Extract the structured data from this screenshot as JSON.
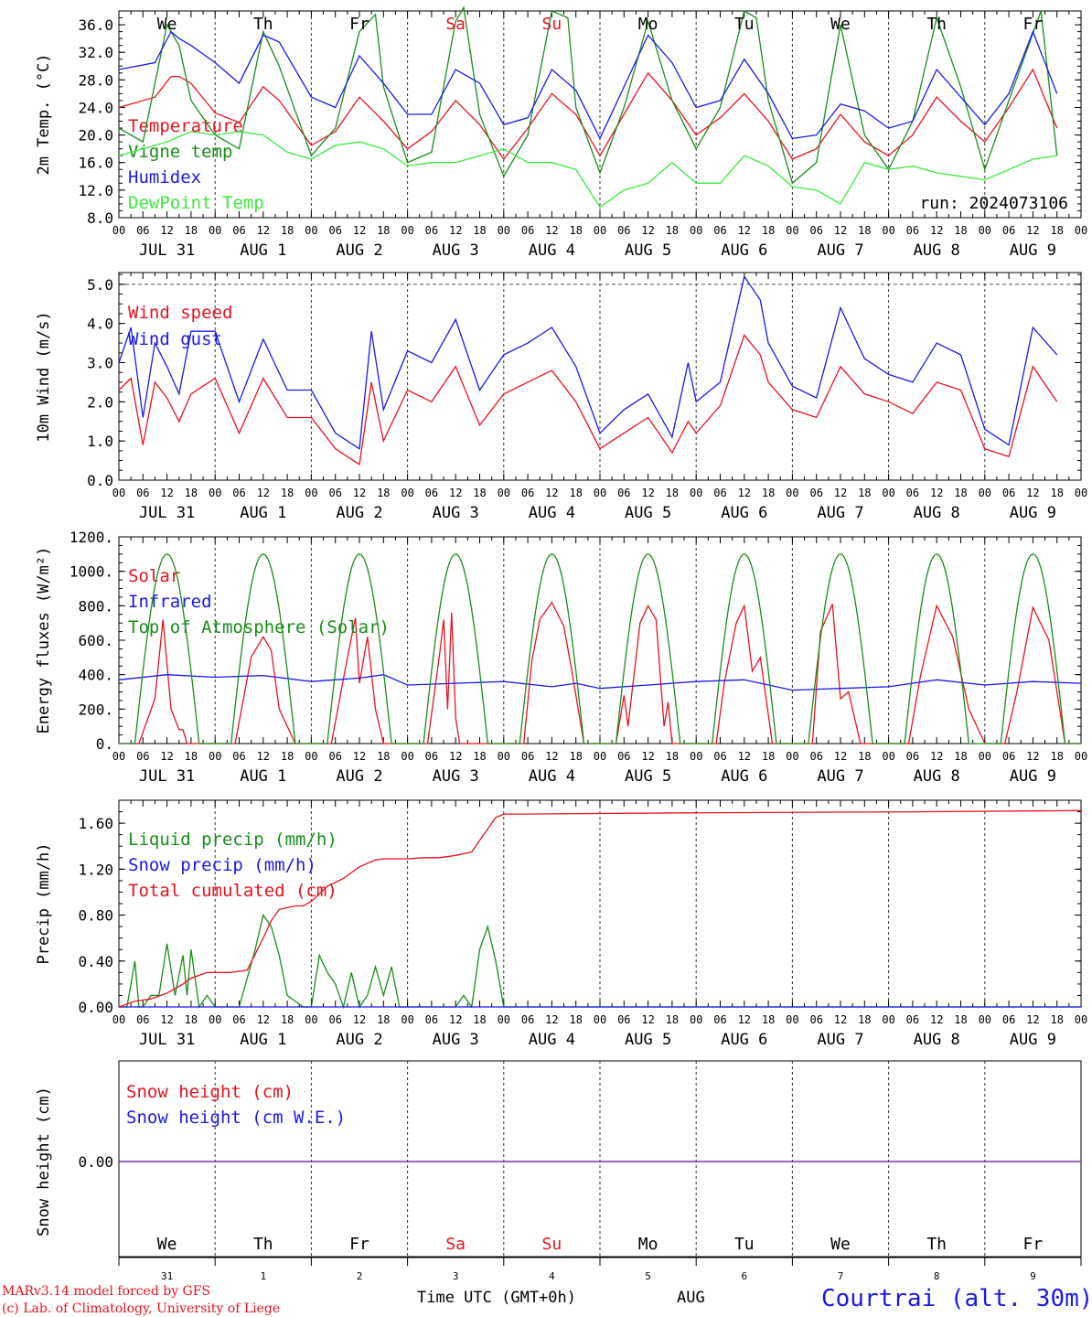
{
  "colors": {
    "red": "#e8121e",
    "green": "#1a8c1a",
    "blue": "#1a1ae8",
    "lime": "#3ee83e",
    "purple": "#7a2aa0",
    "axis": "#000000"
  },
  "run_label": "run: 2024073106",
  "x_tick_labels": [
    "00",
    "06",
    "12",
    "18"
  ],
  "date_labels": [
    "JUL 31",
    "AUG  1",
    "AUG  2",
    "AUG  3",
    "AUG  4",
    "AUG  5",
    "AUG  6",
    "AUG  7",
    "AUG  8",
    "AUG  9"
  ],
  "weekdays": [
    {
      "label": "We",
      "weekend": false
    },
    {
      "label": "Th",
      "weekend": false
    },
    {
      "label": "Fr",
      "weekend": false
    },
    {
      "label": "Sa",
      "weekend": true
    },
    {
      "label": "Su",
      "weekend": true
    },
    {
      "label": "Mo",
      "weekend": false
    },
    {
      "label": "Tu",
      "weekend": false
    },
    {
      "label": "We",
      "weekend": false
    },
    {
      "label": "Th",
      "weekend": false
    },
    {
      "label": "Fr",
      "weekend": false
    }
  ],
  "day_numbers": [
    "31",
    "1",
    "2",
    "3",
    "4",
    "5",
    "6",
    "7",
    "8",
    "9"
  ],
  "footer": {
    "model": "MARv3.14 model forced by GFS",
    "copyright": "(c) Lab. of Climatology, University of Liege",
    "time_label": "Time UTC (GMT+0h)",
    "month": "AUG",
    "station": "Courtrai (alt. 30m)"
  },
  "chart_data": [
    {
      "type": "line",
      "ylabel": "2m Temp. (°C)",
      "ylim": [
        8,
        38
      ],
      "yticks": [
        "8.0",
        "12.0",
        "16.0",
        "20.0",
        "24.0",
        "28.0",
        "32.0",
        "36.0"
      ],
      "x_unit": "hours since 2024-07-31 00 UTC",
      "series": [
        {
          "name": "Temperature",
          "color": "red",
          "x": [
            0,
            9,
            13,
            15,
            18,
            24,
            30,
            36,
            40,
            48,
            54,
            60,
            66,
            72,
            78,
            84,
            90,
            96,
            102,
            108,
            114,
            120,
            126,
            132,
            138,
            144,
            150,
            156,
            162,
            168,
            174,
            180,
            186,
            192,
            198,
            204,
            210,
            216,
            222,
            228,
            234
          ],
          "y": [
            24.0,
            25.5,
            28.5,
            28.5,
            27.5,
            23.2,
            21.8,
            27.0,
            25.0,
            18.5,
            20.5,
            25.5,
            22.0,
            18.0,
            20.5,
            25.0,
            21.5,
            16.5,
            21.0,
            26.0,
            23.0,
            17.0,
            23.0,
            29.0,
            25.0,
            20.0,
            22.5,
            26.0,
            22.0,
            16.5,
            18.0,
            23.0,
            19.0,
            17.0,
            20.0,
            25.5,
            22.0,
            19.0,
            24.0,
            29.5,
            21.0
          ]
        },
        {
          "name": "Vigne temp",
          "color": "green",
          "x": [
            0,
            6,
            12,
            15,
            18,
            24,
            30,
            36,
            40,
            48,
            54,
            60,
            64,
            66,
            72,
            78,
            84,
            86,
            90,
            96,
            102,
            108,
            112,
            114,
            120,
            126,
            132,
            138,
            144,
            150,
            156,
            159,
            162,
            168,
            174,
            180,
            186,
            192,
            198,
            204,
            210,
            216,
            222,
            230,
            234
          ],
          "y": [
            21.0,
            19.0,
            36.0,
            33.0,
            25.0,
            20.0,
            18.0,
            35.0,
            30.0,
            17.0,
            21.0,
            35.0,
            37.5,
            27.0,
            16.0,
            17.5,
            36.5,
            38.5,
            23.0,
            14.0,
            20.0,
            38.0,
            37.0,
            24.0,
            14.5,
            24.0,
            36.5,
            25.0,
            18.0,
            24.0,
            38.0,
            37.0,
            25.0,
            13.0,
            16.0,
            36.0,
            20.0,
            15.0,
            22.0,
            37.0,
            27.0,
            15.0,
            25.0,
            38.0,
            17.0
          ]
        },
        {
          "name": "Humidex",
          "color": "blue",
          "x": [
            0,
            9,
            13,
            15,
            18,
            24,
            30,
            36,
            40,
            48,
            54,
            60,
            66,
            72,
            78,
            84,
            90,
            96,
            102,
            108,
            114,
            120,
            126,
            132,
            138,
            144,
            150,
            156,
            162,
            168,
            174,
            180,
            186,
            192,
            198,
            204,
            210,
            216,
            222,
            228,
            234
          ],
          "y": [
            29.5,
            30.5,
            35.0,
            34.0,
            33.0,
            30.5,
            27.5,
            34.5,
            33.5,
            25.5,
            24.0,
            31.5,
            27.5,
            23.0,
            23.0,
            29.5,
            27.5,
            21.5,
            22.5,
            29.5,
            26.5,
            19.5,
            27.0,
            34.5,
            30.5,
            24.0,
            25.0,
            31.0,
            26.0,
            19.5,
            20.0,
            24.5,
            23.5,
            21.0,
            22.0,
            29.5,
            25.5,
            21.5,
            26.0,
            35.0,
            26.0
          ]
        },
        {
          "name": "DewPoint Temp",
          "color": "lime",
          "x": [
            0,
            6,
            12,
            18,
            24,
            30,
            36,
            42,
            48,
            54,
            60,
            66,
            72,
            78,
            84,
            90,
            96,
            102,
            108,
            114,
            120,
            126,
            132,
            138,
            144,
            150,
            156,
            162,
            168,
            174,
            180,
            186,
            192,
            198,
            204,
            210,
            216,
            222,
            228,
            234
          ],
          "y": [
            17.0,
            18.0,
            19.0,
            20.5,
            20.0,
            20.5,
            20.0,
            17.5,
            16.5,
            18.5,
            19.0,
            18.0,
            15.5,
            16.0,
            16.0,
            17.0,
            18.0,
            16.0,
            16.0,
            15.0,
            9.5,
            12.0,
            13.0,
            16.0,
            13.0,
            13.0,
            17.0,
            15.5,
            12.5,
            12.0,
            10.0,
            16.0,
            15.0,
            15.5,
            14.5,
            14.0,
            13.5,
            15.0,
            16.5,
            17.0
          ]
        }
      ]
    },
    {
      "type": "line",
      "ylabel": "10m Wind (m/s)",
      "ylim": [
        0,
        5.3
      ],
      "yticks": [
        "0.0",
        "1.0",
        "2.0",
        "3.0",
        "4.0",
        "5.0"
      ],
      "hline": 5.0,
      "series": [
        {
          "name": "Wind speed",
          "color": "red",
          "x": [
            0,
            3,
            6,
            9,
            12,
            15,
            18,
            24,
            30,
            36,
            42,
            48,
            54,
            60,
            63,
            66,
            72,
            78,
            84,
            90,
            96,
            102,
            108,
            114,
            120,
            126,
            132,
            138,
            142,
            144,
            150,
            156,
            160,
            162,
            168,
            174,
            180,
            186,
            192,
            198,
            204,
            210,
            216,
            222,
            228,
            234
          ],
          "y": [
            2.3,
            2.6,
            0.9,
            2.5,
            2.1,
            1.5,
            2.2,
            2.6,
            1.2,
            2.6,
            1.6,
            1.6,
            0.8,
            0.4,
            2.5,
            1.0,
            2.3,
            2.0,
            2.9,
            1.4,
            2.2,
            2.5,
            2.8,
            2.0,
            0.8,
            1.2,
            1.6,
            0.7,
            1.5,
            1.2,
            1.9,
            3.7,
            3.2,
            2.5,
            1.8,
            1.6,
            2.9,
            2.2,
            2.0,
            1.7,
            2.5,
            2.3,
            0.8,
            0.6,
            2.9,
            2.0
          ]
        },
        {
          "name": "Wind gust",
          "color": "blue",
          "x": [
            0,
            3,
            6,
            9,
            12,
            15,
            18,
            24,
            30,
            36,
            42,
            48,
            54,
            60,
            63,
            66,
            72,
            78,
            84,
            90,
            96,
            102,
            108,
            114,
            120,
            126,
            132,
            138,
            142,
            144,
            150,
            156,
            160,
            162,
            168,
            174,
            180,
            186,
            192,
            198,
            204,
            210,
            216,
            222,
            228,
            234
          ],
          "y": [
            3.0,
            3.9,
            1.6,
            3.5,
            2.9,
            2.2,
            3.8,
            3.8,
            2.0,
            3.6,
            2.3,
            2.3,
            1.2,
            0.8,
            3.8,
            1.8,
            3.3,
            3.0,
            4.1,
            2.3,
            3.2,
            3.5,
            3.9,
            2.9,
            1.2,
            1.8,
            2.2,
            1.1,
            3.0,
            2.0,
            2.5,
            5.2,
            4.6,
            3.5,
            2.4,
            2.1,
            4.4,
            3.1,
            2.7,
            2.5,
            3.5,
            3.2,
            1.3,
            0.9,
            3.9,
            3.2
          ]
        }
      ]
    },
    {
      "type": "line",
      "ylabel": "Energy fluxes (W/m²)",
      "ylim": [
        0,
        1200
      ],
      "yticks": [
        "0.",
        "200.",
        "400.",
        "600.",
        "800.",
        "1000.",
        "1200."
      ],
      "series": [
        {
          "name": "Solar",
          "color": "red",
          "x": [
            0,
            5,
            9,
            11,
            13,
            15,
            16,
            17,
            20,
            24,
            29,
            33,
            36,
            38,
            40,
            44,
            48,
            53,
            57,
            59,
            60,
            62,
            64,
            66,
            72,
            77,
            80,
            81,
            82,
            83,
            84,
            85,
            88,
            96,
            101,
            103,
            105,
            108,
            111,
            113,
            116,
            120,
            124,
            126,
            127,
            130,
            132,
            134,
            136,
            137,
            138,
            144,
            149,
            151,
            154,
            156,
            158,
            160,
            163,
            168,
            173,
            175,
            178,
            180,
            182,
            185,
            192,
            197,
            200,
            204,
            208,
            212,
            216,
            221,
            224,
            228,
            232,
            236,
            240
          ],
          "y": [
            0,
            0,
            260,
            720,
            200,
            80,
            80,
            0,
            0,
            0,
            0,
            500,
            620,
            540,
            200,
            0,
            0,
            0,
            500,
            730,
            350,
            620,
            200,
            0,
            0,
            0,
            520,
            720,
            200,
            760,
            150,
            0,
            0,
            0,
            0,
            480,
            720,
            820,
            680,
            420,
            0,
            0,
            0,
            280,
            100,
            700,
            800,
            720,
            100,
            240,
            0,
            0,
            0,
            350,
            700,
            800,
            420,
            500,
            0,
            0,
            0,
            650,
            810,
            260,
            300,
            0,
            0,
            0,
            400,
            800,
            620,
            200,
            0,
            0,
            300,
            790,
            600,
            0,
            0
          ]
        },
        {
          "name": "Infrared",
          "color": "blue",
          "x": [
            0,
            12,
            24,
            36,
            48,
            60,
            66,
            72,
            84,
            96,
            108,
            114,
            120,
            132,
            144,
            156,
            168,
            180,
            192,
            204,
            216,
            228,
            240
          ],
          "y": [
            370,
            400,
            385,
            395,
            360,
            380,
            400,
            340,
            350,
            360,
            330,
            350,
            320,
            340,
            360,
            370,
            310,
            320,
            330,
            370,
            340,
            360,
            350
          ]
        },
        {
          "name": "Top of Atmosphere (Solar)",
          "color": "green",
          "shape": "diurnal",
          "peak": 1100,
          "rise_hour": 4,
          "set_hour": 20
        }
      ]
    },
    {
      "type": "line",
      "ylabel": "Precip (mm/h)",
      "ylim": [
        0,
        1.8
      ],
      "yticks": [
        "0.00",
        "0.40",
        "0.80",
        "1.20",
        "1.60"
      ],
      "series": [
        {
          "name": "Liquid precip (mm/h)",
          "color": "green",
          "x": [
            0,
            2,
            4,
            5,
            6,
            8,
            10,
            12,
            14,
            16,
            17,
            18,
            20,
            22,
            24,
            26,
            30,
            34,
            36,
            38,
            40,
            42,
            46,
            48,
            50,
            52,
            54,
            56,
            58,
            60,
            62,
            64,
            66,
            68,
            70,
            72,
            84,
            86,
            88,
            90,
            92,
            94,
            96,
            98,
            144,
            240
          ],
          "y": [
            0.0,
            0.0,
            0.4,
            0.0,
            0.0,
            0.1,
            0.1,
            0.55,
            0.1,
            0.45,
            0.1,
            0.5,
            0.0,
            0.1,
            0.0,
            0.0,
            0.0,
            0.5,
            0.8,
            0.7,
            0.45,
            0.1,
            0.0,
            0.0,
            0.45,
            0.3,
            0.2,
            0.0,
            0.3,
            0.0,
            0.1,
            0.35,
            0.1,
            0.35,
            0.0,
            0.0,
            0.0,
            0.1,
            0.0,
            0.5,
            0.7,
            0.4,
            0.0,
            0.0,
            0.0,
            0.0
          ]
        },
        {
          "name": "Snow precip (mm/h)",
          "color": "blue",
          "x": [
            0,
            240
          ],
          "y": [
            0,
            0
          ]
        },
        {
          "name": "Total cumulated (cm)",
          "color": "red",
          "x": [
            0,
            4,
            8,
            12,
            16,
            18,
            22,
            24,
            28,
            32,
            36,
            38,
            40,
            44,
            46,
            48,
            52,
            56,
            60,
            64,
            66,
            68,
            72,
            76,
            80,
            84,
            88,
            90,
            92,
            94,
            96,
            100,
            140,
            200,
            240
          ],
          "y": [
            0.0,
            0.05,
            0.07,
            0.12,
            0.2,
            0.25,
            0.3,
            0.3,
            0.3,
            0.32,
            0.6,
            0.75,
            0.85,
            0.88,
            0.88,
            0.92,
            1.05,
            1.12,
            1.22,
            1.28,
            1.29,
            1.29,
            1.29,
            1.3,
            1.3,
            1.32,
            1.35,
            1.45,
            1.55,
            1.65,
            1.68,
            1.68,
            1.69,
            1.7,
            1.71
          ]
        }
      ]
    },
    {
      "type": "line",
      "ylabel": "Snow height (cm)",
      "ylim": [
        -1,
        1
      ],
      "yticks": [
        "0.00"
      ],
      "series": [
        {
          "name": "Snow height (cm)",
          "color": "red",
          "x": [
            0,
            240
          ],
          "y": [
            0,
            0
          ]
        },
        {
          "name": "Snow height (cm W.E.)",
          "color": "blue",
          "x": [
            0,
            240
          ],
          "y": [
            0,
            0
          ]
        }
      ]
    }
  ]
}
